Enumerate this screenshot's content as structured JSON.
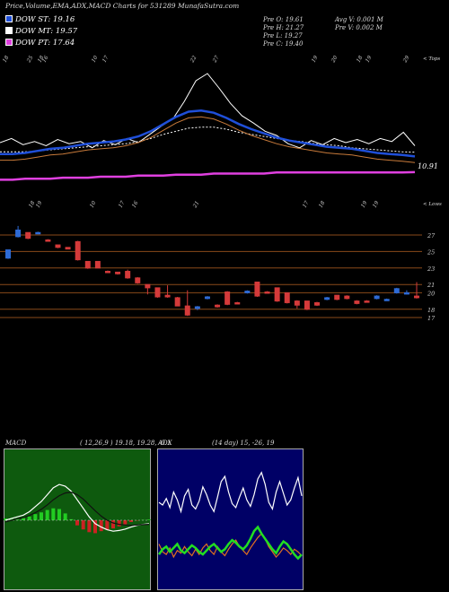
{
  "header": {
    "title": "Price,Volume,EMA,ADX,MACD Charts for 531289 MunafaSutra.com",
    "stats_left": [
      "Pre  O: 19.61",
      "Pre  H: 21.27",
      "Pre  L: 19.27",
      "Pre  C: 19.40"
    ],
    "stats_right": [
      "Avg V: 0.001 M",
      "Pre  V: 0.002  M"
    ]
  },
  "legend": [
    {
      "label": "DOW ST: 19.16",
      "color": "#1f4fd9"
    },
    {
      "label": "DOW MT: 19.57",
      "color": "#ffffff"
    },
    {
      "label": "DOW PT: 17.64",
      "color": "#e040e0"
    }
  ],
  "colors": {
    "ema_short": "#1f4fd9",
    "ema_long": "#e040e0",
    "line_up": "#2e6bd6",
    "line_down": "#d43a3a",
    "level": "#8a4a1a",
    "macd_green": "#22cc22",
    "macd_red": "#cc2222"
  },
  "ema_panel": {
    "top_label": "< Tops",
    "bottom_label": "< Lows",
    "last_value": "10.91",
    "top_ticks": [
      "18",
      "25",
      "18",
      "16",
      "10",
      "17",
      "22",
      "27",
      "19",
      "20",
      "18",
      "19",
      "29"
    ],
    "bottom_ticks": [
      "18",
      "19",
      "10",
      "17",
      "16",
      "21",
      "17",
      "18",
      "19",
      "19"
    ]
  },
  "chart_data": [
    {
      "type": "line",
      "title": "Price,Volume,EMA,ADX,MACD Charts for 531289 MunafaSutra.com",
      "series": [
        {
          "name": "DOW ST",
          "values": [
            19.4,
            19.4,
            19.5,
            19.7,
            19.9,
            20.0,
            20.2,
            20.4,
            20.5,
            20.6,
            20.8,
            21.1,
            21.6,
            22.3,
            23.0,
            23.5,
            23.6,
            23.4,
            22.9,
            22.3,
            21.8,
            21.4,
            21.0,
            20.7,
            20.5,
            20.3,
            20.1,
            20.0,
            19.9,
            19.7,
            19.5,
            19.4,
            19.3,
            19.16
          ]
        },
        {
          "name": "DOW MT",
          "values": [
            19.6,
            19.6,
            19.6,
            19.7,
            19.8,
            19.9,
            20.0,
            20.1,
            20.2,
            20.3,
            20.4,
            20.6,
            20.9,
            21.3,
            21.6,
            21.9,
            22.0,
            22.0,
            21.8,
            21.5,
            21.3,
            21.1,
            20.9,
            20.7,
            20.6,
            20.4,
            20.3,
            20.2,
            20.0,
            19.9,
            19.8,
            19.7,
            19.6,
            19.57
          ]
        },
        {
          "name": "DOW PT",
          "values": [
            16.9,
            16.9,
            17.0,
            17.0,
            17.0,
            17.1,
            17.1,
            17.1,
            17.2,
            17.2,
            17.2,
            17.3,
            17.3,
            17.3,
            17.4,
            17.4,
            17.4,
            17.5,
            17.5,
            17.5,
            17.5,
            17.5,
            17.6,
            17.6,
            17.6,
            17.6,
            17.6,
            17.6,
            17.6,
            17.6,
            17.6,
            17.6,
            17.6,
            17.64
          ]
        }
      ]
    },
    {
      "type": "bar",
      "title": "",
      "y_ticks": [
        27,
        25,
        23,
        21,
        20,
        18,
        17
      ],
      "candles": [
        {
          "o": 24.2,
          "c": 25.2,
          "h": 25.2,
          "l": 24.1
        },
        {
          "o": 26.8,
          "c": 27.6,
          "h": 28.1,
          "l": 26.7
        },
        {
          "o": 27.3,
          "c": 26.6,
          "h": 27.3,
          "l": 26.5
        },
        {
          "o": 27.2,
          "c": 27.3,
          "h": 27.4,
          "l": 27.1
        },
        {
          "o": 26.4,
          "c": 26.3,
          "h": 26.5,
          "l": 26.3
        },
        {
          "o": 25.8,
          "c": 25.5,
          "h": 25.8,
          "l": 25.4
        },
        {
          "o": 25.5,
          "c": 25.3,
          "h": 25.5,
          "l": 25.3
        },
        {
          "o": 26.2,
          "c": 24.0,
          "h": 26.3,
          "l": 23.9
        },
        {
          "o": 23.8,
          "c": 23.0,
          "h": 23.8,
          "l": 22.9
        },
        {
          "o": 23.8,
          "c": 23.0,
          "h": 23.8,
          "l": 23.0
        },
        {
          "o": 22.6,
          "c": 22.5,
          "h": 22.7,
          "l": 22.4
        },
        {
          "o": 22.5,
          "c": 22.3,
          "h": 22.5,
          "l": 22.2
        },
        {
          "o": 22.6,
          "c": 21.8,
          "h": 22.8,
          "l": 21.7
        },
        {
          "o": 21.8,
          "c": 21.2,
          "h": 21.9,
          "l": 21.1
        },
        {
          "o": 21.0,
          "c": 20.6,
          "h": 21.0,
          "l": 19.8
        },
        {
          "o": 20.6,
          "c": 19.5,
          "h": 20.6,
          "l": 19.4
        },
        {
          "o": 19.7,
          "c": 19.5,
          "h": 20.9,
          "l": 19.4
        },
        {
          "o": 19.4,
          "c": 18.4,
          "h": 19.5,
          "l": 18.4
        },
        {
          "o": 18.4,
          "c": 17.3,
          "h": 20.3,
          "l": 17.2
        },
        {
          "o": 18.1,
          "c": 18.3,
          "h": 18.4,
          "l": 17.9
        },
        {
          "o": 19.3,
          "c": 19.5,
          "h": 19.6,
          "l": 19.2
        },
        {
          "o": 18.5,
          "c": 18.3,
          "h": 18.6,
          "l": 18.2
        },
        {
          "o": 20.1,
          "c": 18.6,
          "h": 20.2,
          "l": 18.5
        },
        {
          "o": 18.8,
          "c": 18.7,
          "h": 18.9,
          "l": 18.6
        },
        {
          "o": 20.0,
          "c": 20.2,
          "h": 20.3,
          "l": 19.9
        },
        {
          "o": 21.3,
          "c": 19.6,
          "h": 21.3,
          "l": 19.5
        },
        {
          "o": 20.1,
          "c": 20.0,
          "h": 20.2,
          "l": 19.9
        },
        {
          "o": 20.6,
          "c": 19.0,
          "h": 20.6,
          "l": 18.9
        },
        {
          "o": 20.0,
          "c": 18.8,
          "h": 20.0,
          "l": 18.7
        },
        {
          "o": 19.0,
          "c": 18.5,
          "h": 19.1,
          "l": 18.1
        },
        {
          "o": 19.0,
          "c": 18.0,
          "h": 19.0,
          "l": 17.9
        },
        {
          "o": 18.8,
          "c": 18.5,
          "h": 18.9,
          "l": 18.4
        },
        {
          "o": 19.2,
          "c": 19.4,
          "h": 19.5,
          "l": 19.1
        },
        {
          "o": 19.7,
          "c": 19.2,
          "h": 19.7,
          "l": 19.1
        },
        {
          "o": 19.6,
          "c": 19.3,
          "h": 19.7,
          "l": 19.2
        },
        {
          "o": 19.0,
          "c": 18.7,
          "h": 19.1,
          "l": 18.6
        },
        {
          "o": 19.0,
          "c": 18.9,
          "h": 19.1,
          "l": 18.8
        },
        {
          "o": 19.3,
          "c": 19.6,
          "h": 19.7,
          "l": 19.2
        },
        {
          "o": 19.1,
          "c": 19.2,
          "h": 19.3,
          "l": 19.0
        },
        {
          "o": 20.0,
          "c": 20.5,
          "h": 20.6,
          "l": 19.9
        },
        {
          "o": 19.9,
          "c": 20.0,
          "h": 20.3,
          "l": 19.8
        },
        {
          "o": 19.6,
          "c": 19.4,
          "h": 21.3,
          "l": 19.3
        }
      ]
    },
    {
      "type": "bar",
      "title": "MACD",
      "params": "( 12,26,9 ) 19.18,  19.28,  -0.1",
      "series": [
        {
          "name": "macd",
          "values": [
            0.0,
            0.05,
            0.1,
            0.15,
            0.25,
            0.4,
            0.55,
            0.75,
            0.95,
            1.05,
            1.0,
            0.85,
            0.6,
            0.35,
            0.1,
            -0.1,
            -0.2,
            -0.28,
            -0.32,
            -0.3,
            -0.26,
            -0.2,
            -0.15,
            -0.12,
            -0.1
          ]
        },
        {
          "name": "signal",
          "values": [
            -0.05,
            0.0,
            0.04,
            0.08,
            0.14,
            0.22,
            0.32,
            0.45,
            0.6,
            0.72,
            0.8,
            0.82,
            0.75,
            0.62,
            0.45,
            0.28,
            0.12,
            0.0,
            -0.08,
            -0.12,
            -0.14,
            -0.15,
            -0.14,
            -0.13,
            -0.12
          ]
        },
        {
          "name": "histogram",
          "values": [
            0.05,
            0.05,
            0.06,
            0.07,
            0.11,
            0.18,
            0.23,
            0.3,
            0.35,
            0.33,
            0.2,
            0.03,
            -0.15,
            -0.27,
            -0.35,
            -0.38,
            -0.32,
            -0.28,
            -0.24,
            -0.18,
            -0.12,
            -0.05,
            -0.01,
            0.01,
            0.02
          ]
        }
      ]
    },
    {
      "type": "line",
      "title": "ADX",
      "params": "(14 day) 15,  -26,  19",
      "series": [
        {
          "name": "adx",
          "values": [
            62,
            60,
            65,
            58,
            70,
            64,
            55,
            67,
            72,
            60,
            57,
            63,
            74,
            68,
            60,
            55,
            66,
            78,
            82,
            70,
            61,
            58,
            66,
            73,
            64,
            59,
            68,
            80,
            85,
            76,
            62,
            57,
            70,
            78,
            69,
            60,
            64,
            73,
            81,
            67
          ]
        },
        {
          "name": "+di",
          "values": [
            30,
            24,
            22,
            27,
            20,
            25,
            23,
            28,
            24,
            21,
            26,
            22,
            27,
            30,
            25,
            22,
            28,
            24,
            21,
            26,
            30,
            33,
            28,
            25,
            22,
            27,
            31,
            35,
            38,
            34,
            28,
            24,
            20,
            23,
            27,
            25,
            22,
            26,
            24,
            21
          ]
        },
        {
          "name": "-di",
          "values": [
            22,
            26,
            28,
            24,
            27,
            30,
            25,
            23,
            26,
            29,
            27,
            24,
            22,
            25,
            28,
            30,
            27,
            24,
            26,
            30,
            33,
            31,
            28,
            26,
            29,
            34,
            40,
            43,
            38,
            34,
            30,
            26,
            23,
            28,
            32,
            30,
            26,
            22,
            19,
            22
          ]
        }
      ]
    }
  ]
}
